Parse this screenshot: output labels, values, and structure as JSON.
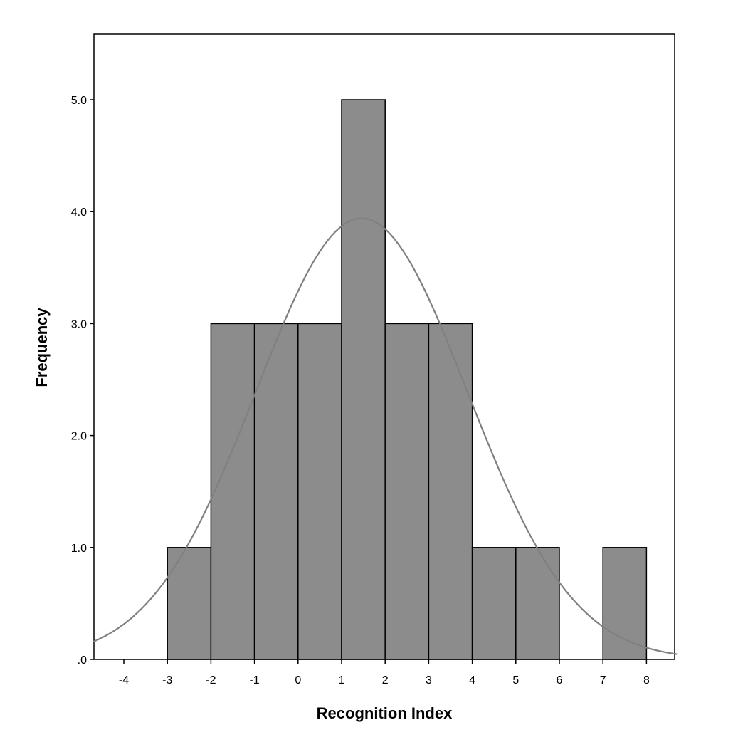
{
  "chart_data": {
    "type": "bar",
    "subtype": "histogram",
    "title": "",
    "xlabel": "Recognition Index",
    "ylabel": "Frequency",
    "bins": [
      {
        "start": -3,
        "end": -2,
        "value": 1
      },
      {
        "start": -2,
        "end": -1,
        "value": 3
      },
      {
        "start": -1,
        "end": 0,
        "value": 3
      },
      {
        "start": 0,
        "end": 1,
        "value": 3
      },
      {
        "start": 1,
        "end": 2,
        "value": 5
      },
      {
        "start": 2,
        "end": 3,
        "value": 3
      },
      {
        "start": 3,
        "end": 4,
        "value": 3
      },
      {
        "start": 4,
        "end": 5,
        "value": 1
      },
      {
        "start": 5,
        "end": 6,
        "value": 1
      },
      {
        "start": 6,
        "end": 7,
        "value": 0
      },
      {
        "start": 7,
        "end": 8,
        "value": 1
      }
    ],
    "xlim": [
      -4.7,
      8.7
    ],
    "ylim": [
      0,
      5.5
    ],
    "x_ticks": [
      -4,
      -3,
      -2,
      -1,
      0,
      1,
      2,
      3,
      4,
      5,
      6,
      7,
      8
    ],
    "x_tick_labels": [
      "-4",
      "-3",
      "-2",
      "-1",
      "0",
      "1",
      "2",
      "3",
      "4",
      "5",
      "6",
      "7",
      "8"
    ],
    "y_ticks": [
      0,
      1,
      2,
      3,
      4,
      5
    ],
    "y_tick_labels": [
      ".0",
      "1.0",
      "2.0",
      "3.0",
      "4.0",
      "5.0"
    ],
    "normal_curve": {
      "mean": 1.46,
      "sd": 2.43,
      "n": 24,
      "bin_width": 1
    },
    "grid": false,
    "legend": "none",
    "colors": {
      "bar_fill": "#8c8c8c",
      "bar_stroke": "#000000",
      "curve": "#808080",
      "axis": "#000000"
    }
  }
}
